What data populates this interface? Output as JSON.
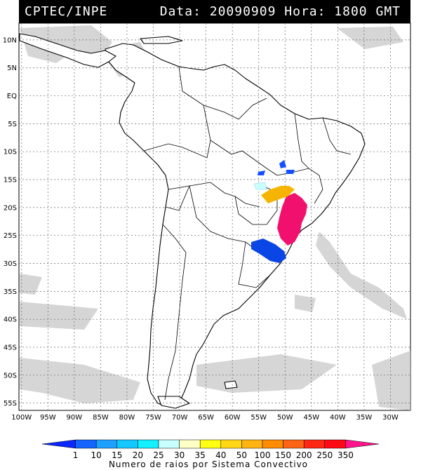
{
  "header": {
    "left": "CPTEC/INPE",
    "right": "Data: 20090909 Hora: 1800 GMT"
  },
  "map": {
    "lat_labels": [
      "10N",
      "5N",
      "EQ",
      "5S",
      "10S",
      "15S",
      "20S",
      "25S",
      "30S",
      "35S",
      "40S",
      "45S",
      "50S",
      "55S"
    ],
    "lat_values": [
      10,
      5,
      0,
      -5,
      -10,
      -15,
      -20,
      -25,
      -30,
      -35,
      -40,
      -45,
      -50,
      -55
    ],
    "lon_labels": [
      "100W",
      "95W",
      "90W",
      "85W",
      "80W",
      "75W",
      "70W",
      "65W",
      "60W",
      "55W",
      "50W",
      "45W",
      "40W",
      "35W",
      "30W"
    ],
    "lon_values": [
      -100,
      -95,
      -90,
      -85,
      -80,
      -75,
      -70,
      -65,
      -60,
      -55,
      -50,
      -45,
      -40,
      -35,
      -30
    ],
    "lon_range": [
      -100.5,
      -26.2
    ],
    "lat_range": [
      -56.3,
      13
    ]
  },
  "colorbar": {
    "labels": [
      "1",
      "10",
      "15",
      "20",
      "25",
      "30",
      "35",
      "40",
      "50",
      "100",
      "150",
      "200",
      "250",
      "350"
    ],
    "colors": [
      "#0a28ff",
      "#1464ff",
      "#1ea0ff",
      "#14c8ff",
      "#14f0ff",
      "#c8ffff",
      "#ffffc8",
      "#ffff14",
      "#ffd714",
      "#ffb414",
      "#ff8c00",
      "#ff6414",
      "#ff2814",
      "#ff0a14",
      "#ff148c"
    ],
    "title": "Numero de raios por Sistema Convectivo"
  }
}
